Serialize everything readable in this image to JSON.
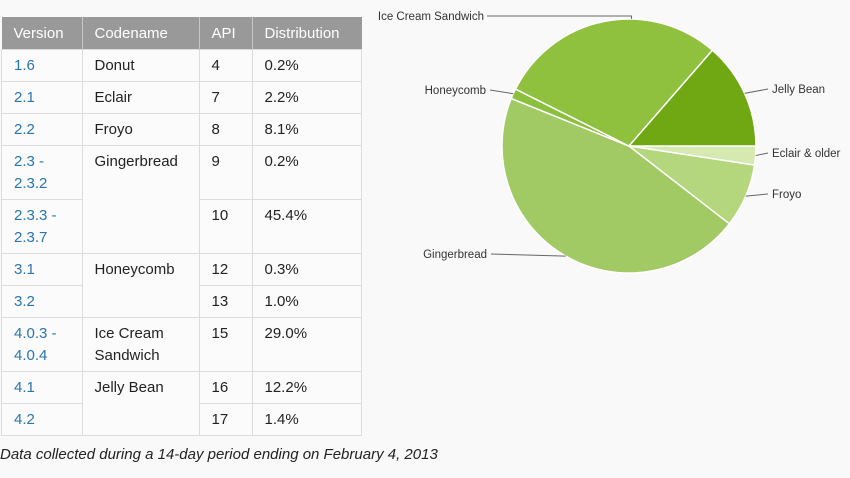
{
  "table": {
    "headers": [
      "Version",
      "Codename",
      "API",
      "Distribution"
    ],
    "rows": [
      {
        "version": [
          "1.6"
        ],
        "codename": [
          "Donut"
        ],
        "api": "4",
        "dist": "0.2%"
      },
      {
        "version": [
          "2.1"
        ],
        "codename": [
          "Eclair"
        ],
        "api": "7",
        "dist": "2.2%"
      },
      {
        "version": [
          "2.2"
        ],
        "codename": [
          "Froyo"
        ],
        "api": "8",
        "dist": "8.1%"
      },
      {
        "version": [
          "2.3 -",
          "2.3.2"
        ],
        "codename": [
          "Gingerbread"
        ],
        "api": "9",
        "dist": "0.2%"
      },
      {
        "version": [
          "2.3.3 -",
          "2.3.7"
        ],
        "codename": [],
        "api": "10",
        "dist": "45.4%"
      },
      {
        "version": [
          "3.1"
        ],
        "codename": [
          "Honeycomb"
        ],
        "api": "12",
        "dist": "0.3%"
      },
      {
        "version": [
          "3.2"
        ],
        "codename": [],
        "api": "13",
        "dist": "1.0%"
      },
      {
        "version": [
          "4.0.3 -",
          "4.0.4"
        ],
        "codename": [
          "Ice Cream",
          "Sandwich"
        ],
        "api": "15",
        "dist": "29.0%"
      },
      {
        "version": [
          "4.1"
        ],
        "codename": [
          "Jelly Bean"
        ],
        "api": "16",
        "dist": "12.2%"
      },
      {
        "version": [
          "4.2"
        ],
        "codename": [],
        "api": "17",
        "dist": "1.4%"
      }
    ]
  },
  "note": "Data collected during a 14-day period ending on February 4, 2013",
  "chart_data": {
    "type": "pie",
    "start_angle_deg": 0,
    "direction": "clockwise",
    "slices": [
      {
        "label": "Eclair & older",
        "value": 2.4,
        "color": "#d6e9b0"
      },
      {
        "label": "Froyo",
        "value": 8.1,
        "color": "#b4d67c"
      },
      {
        "label": "Gingerbread",
        "value": 45.6,
        "color": "#a1c964"
      },
      {
        "label": "Honeycomb",
        "value": 1.3,
        "color": "#8bbf3e"
      },
      {
        "label": "Ice Cream Sandwich",
        "value": 29.0,
        "color": "#8fc13e"
      },
      {
        "label": "Jelly Bean",
        "value": 13.6,
        "color": "#6fa812"
      }
    ]
  }
}
